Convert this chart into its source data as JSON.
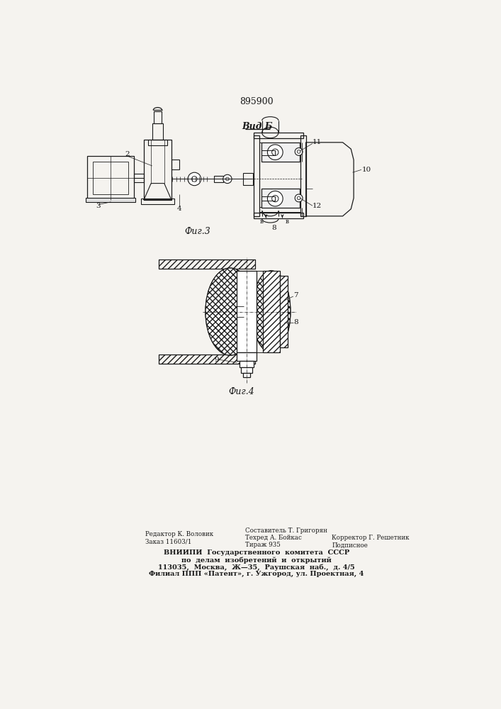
{
  "patent_number": "895900",
  "background_color": "#f5f3ef",
  "line_color": "#1a1a1a",
  "fig3_label": "Фиг.3",
  "fig4_label": "Фиг.4",
  "vid_b_label": "Вид Б"
}
